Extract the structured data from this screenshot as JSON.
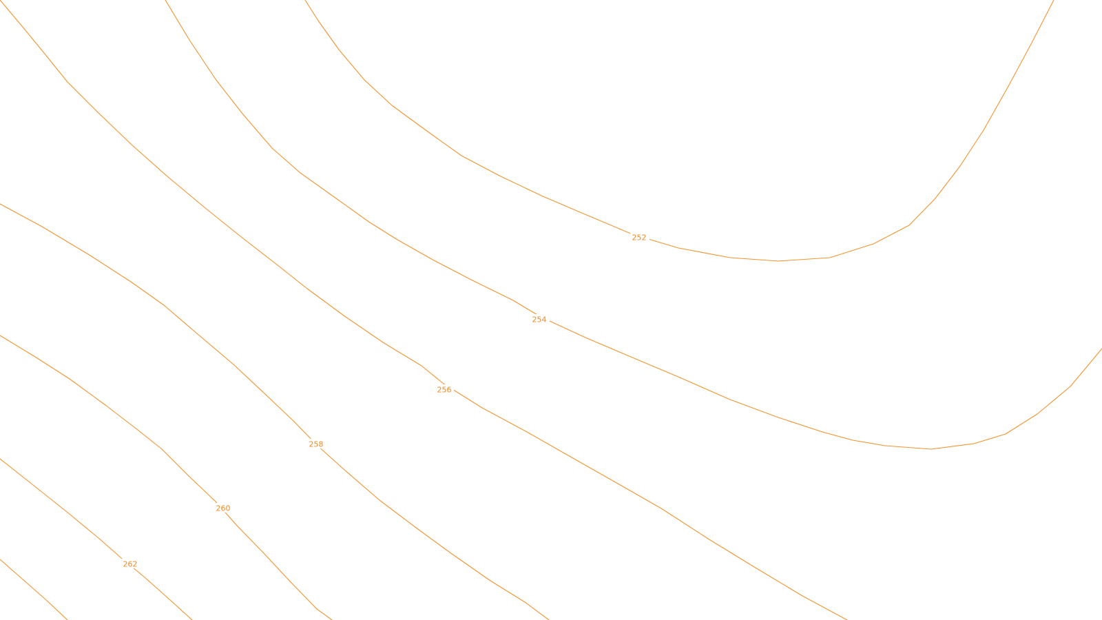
{
  "map": {
    "line_color": "#f5922e",
    "label_color": "#f08a24",
    "background": "#ffffff"
  },
  "contours": [
    {
      "id": "252",
      "label": "252"
    },
    {
      "id": "254",
      "label": "254"
    },
    {
      "id": "256",
      "label": "256"
    },
    {
      "id": "258",
      "label": "258"
    },
    {
      "id": "260",
      "label": "260"
    },
    {
      "id": "262",
      "label": "262"
    },
    {
      "id": "264",
      "label": ""
    }
  ]
}
